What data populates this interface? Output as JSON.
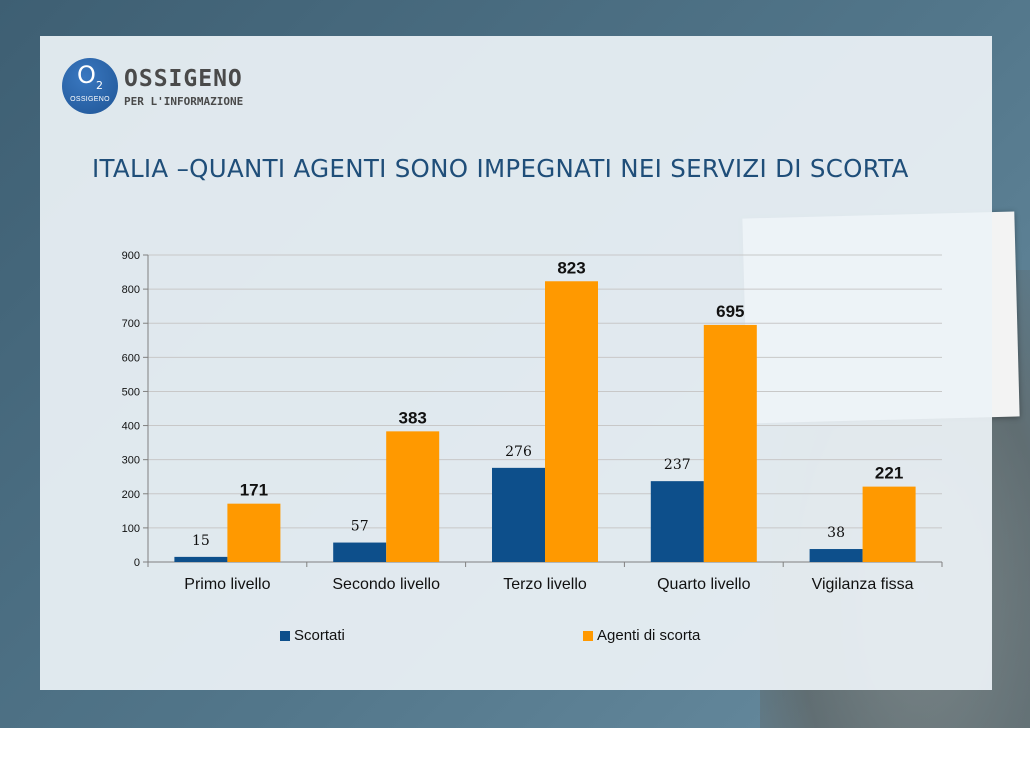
{
  "logo": {
    "mark": "O",
    "mark_sub": "2",
    "mark_small": "OSSIGENO",
    "name": "OSSIGENO",
    "tagline": "PER L'INFORMAZIONE"
  },
  "title": "ITALIA –QUANTI AGENTI SONO IMPEGNATI NEI SERVIZI DI SCORTA",
  "colors": {
    "scortati": "#0d4f8b",
    "agenti": "#ff9900",
    "title": "#1f4e79"
  },
  "chart_data": {
    "type": "bar",
    "categories": [
      "Primo livello",
      "Secondo livello",
      "Terzo livello",
      "Quarto livello",
      "Vigilanza fissa"
    ],
    "series": [
      {
        "name": "Scortati",
        "values": [
          15,
          57,
          276,
          237,
          38
        ]
      },
      {
        "name": "Agenti di scorta",
        "values": [
          171,
          383,
          823,
          695,
          221
        ]
      }
    ],
    "yticks": [
      "0",
      "100",
      "200",
      "300",
      "400",
      "500",
      "600",
      "700",
      "800",
      "900"
    ],
    "ylim": [
      0,
      900
    ],
    "grid": true,
    "legend": "bottom",
    "xlabel": "",
    "ylabel": ""
  }
}
